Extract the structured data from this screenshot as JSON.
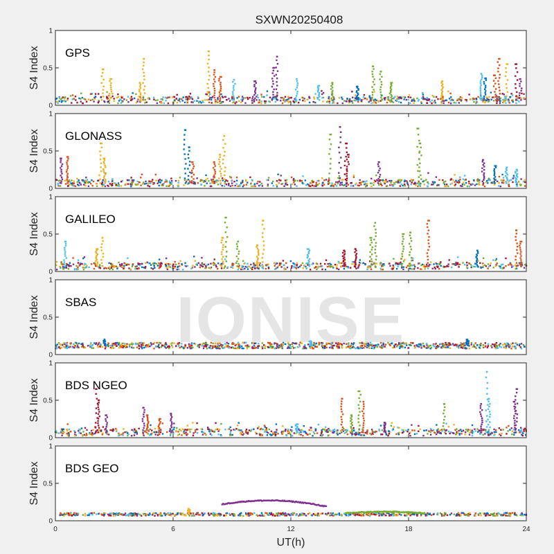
{
  "chart_data": {
    "type": "scatter",
    "title": "SXWN20250408",
    "xlabel": "UT(h)",
    "ylabel": "S4 Index",
    "xlim": [
      0,
      24
    ],
    "xticks": [
      0,
      6,
      12,
      18,
      24
    ],
    "ylim": [
      0,
      1
    ],
    "yticks": [
      0,
      0.5,
      1
    ],
    "ytick_labels": [
      "0",
      "0.5",
      "1"
    ],
    "grid": false,
    "watermark": "IONISE",
    "series_colors": [
      "#0072BD",
      "#D95319",
      "#EDB120",
      "#7E2F8E",
      "#77AC30",
      "#4DBEEE",
      "#A2142F"
    ],
    "panels": [
      {
        "label": "GPS",
        "spikes": [
          {
            "x": 2.4,
            "y": 0.48,
            "c": 2
          },
          {
            "x": 2.8,
            "y": 0.35,
            "c": 2
          },
          {
            "x": 4.5,
            "y": 0.62,
            "c": 2
          },
          {
            "x": 4.3,
            "y": 0.3,
            "c": 2
          },
          {
            "x": 7.8,
            "y": 0.72,
            "c": 2
          },
          {
            "x": 8.1,
            "y": 0.47,
            "c": 1
          },
          {
            "x": 8.4,
            "y": 0.38,
            "c": 1
          },
          {
            "x": 9.1,
            "y": 0.34,
            "c": 5
          },
          {
            "x": 10.2,
            "y": 0.32,
            "c": 3
          },
          {
            "x": 11.3,
            "y": 0.65,
            "c": 3
          },
          {
            "x": 11.1,
            "y": 0.5,
            "c": 3
          },
          {
            "x": 12.3,
            "y": 0.35,
            "c": 5
          },
          {
            "x": 13.4,
            "y": 0.26,
            "c": 5
          },
          {
            "x": 14.1,
            "y": 0.3,
            "c": 4
          },
          {
            "x": 15.4,
            "y": 0.25,
            "c": 0
          },
          {
            "x": 16.2,
            "y": 0.52,
            "c": 4
          },
          {
            "x": 16.6,
            "y": 0.45,
            "c": 4
          },
          {
            "x": 17.1,
            "y": 0.3,
            "c": 4
          },
          {
            "x": 19.7,
            "y": 0.32,
            "c": 2
          },
          {
            "x": 21.7,
            "y": 0.42,
            "c": 5
          },
          {
            "x": 21.9,
            "y": 0.36,
            "c": 0
          },
          {
            "x": 22.6,
            "y": 0.62,
            "c": 1
          },
          {
            "x": 22.4,
            "y": 0.4,
            "c": 1
          },
          {
            "x": 23.0,
            "y": 0.55,
            "c": 2
          },
          {
            "x": 23.5,
            "y": 0.55,
            "c": 6
          },
          {
            "x": 23.7,
            "y": 0.35,
            "c": 3
          }
        ]
      },
      {
        "label": "GLONASS",
        "spikes": [
          {
            "x": 0.3,
            "y": 0.4,
            "c": 3
          },
          {
            "x": 0.6,
            "y": 0.42,
            "c": 1
          },
          {
            "x": 2.3,
            "y": 0.6,
            "c": 2
          },
          {
            "x": 2.5,
            "y": 0.4,
            "c": 2
          },
          {
            "x": 6.6,
            "y": 0.78,
            "c": 0
          },
          {
            "x": 6.8,
            "y": 0.55,
            "c": 0
          },
          {
            "x": 7.0,
            "y": 0.35,
            "c": 1
          },
          {
            "x": 8.6,
            "y": 0.7,
            "c": 2
          },
          {
            "x": 8.4,
            "y": 0.45,
            "c": 2
          },
          {
            "x": 8.1,
            "y": 0.35,
            "c": 1
          },
          {
            "x": 14.0,
            "y": 0.72,
            "c": 4
          },
          {
            "x": 14.5,
            "y": 0.82,
            "c": 3
          },
          {
            "x": 14.8,
            "y": 0.6,
            "c": 6
          },
          {
            "x": 14.9,
            "y": 0.45,
            "c": 6
          },
          {
            "x": 16.5,
            "y": 0.35,
            "c": 3
          },
          {
            "x": 18.5,
            "y": 0.8,
            "c": 4
          },
          {
            "x": 18.6,
            "y": 0.6,
            "c": 4
          },
          {
            "x": 21.8,
            "y": 0.38,
            "c": 3
          },
          {
            "x": 22.4,
            "y": 0.3,
            "c": 0
          },
          {
            "x": 23.0,
            "y": 0.28,
            "c": 5
          },
          {
            "x": 23.5,
            "y": 0.25,
            "c": 5
          }
        ]
      },
      {
        "label": "GALILEO",
        "spikes": [
          {
            "x": 0.5,
            "y": 0.4,
            "c": 5
          },
          {
            "x": 2.4,
            "y": 0.45,
            "c": 2
          },
          {
            "x": 2.1,
            "y": 0.3,
            "c": 2
          },
          {
            "x": 8.7,
            "y": 0.72,
            "c": 4
          },
          {
            "x": 8.5,
            "y": 0.45,
            "c": 2
          },
          {
            "x": 9.3,
            "y": 0.4,
            "c": 4
          },
          {
            "x": 10.6,
            "y": 0.68,
            "c": 2
          },
          {
            "x": 10.3,
            "y": 0.35,
            "c": 2
          },
          {
            "x": 12.9,
            "y": 0.3,
            "c": 5
          },
          {
            "x": 14.7,
            "y": 0.28,
            "c": 6
          },
          {
            "x": 15.3,
            "y": 0.3,
            "c": 6
          },
          {
            "x": 16.3,
            "y": 0.65,
            "c": 4
          },
          {
            "x": 16.1,
            "y": 0.45,
            "c": 4
          },
          {
            "x": 17.7,
            "y": 0.5,
            "c": 4
          },
          {
            "x": 18.1,
            "y": 0.52,
            "c": 4
          },
          {
            "x": 19.0,
            "y": 0.68,
            "c": 1
          },
          {
            "x": 21.5,
            "y": 0.28,
            "c": 0
          },
          {
            "x": 23.5,
            "y": 0.55,
            "c": 1
          },
          {
            "x": 23.7,
            "y": 0.4,
            "c": 1
          }
        ]
      },
      {
        "label": "SBAS",
        "spikes": [
          {
            "x": 2.5,
            "y": 0.2,
            "c": 0
          },
          {
            "x": 13.0,
            "y": 0.18,
            "c": 5
          },
          {
            "x": 21.0,
            "y": 0.2,
            "c": 0
          }
        ]
      },
      {
        "label": "BDS NGEO",
        "spikes": [
          {
            "x": 2.1,
            "y": 0.65,
            "c": 6
          },
          {
            "x": 2.2,
            "y": 0.5,
            "c": 6
          },
          {
            "x": 2.6,
            "y": 0.3,
            "c": 3
          },
          {
            "x": 4.5,
            "y": 0.4,
            "c": 3
          },
          {
            "x": 4.7,
            "y": 0.3,
            "c": 1
          },
          {
            "x": 5.3,
            "y": 0.25,
            "c": 1
          },
          {
            "x": 5.9,
            "y": 0.32,
            "c": 3
          },
          {
            "x": 12.3,
            "y": 0.18,
            "c": 5
          },
          {
            "x": 14.6,
            "y": 0.52,
            "c": 1
          },
          {
            "x": 15.1,
            "y": 0.3,
            "c": 4
          },
          {
            "x": 15.5,
            "y": 0.62,
            "c": 4
          },
          {
            "x": 15.7,
            "y": 0.48,
            "c": 1
          },
          {
            "x": 16.8,
            "y": 0.2,
            "c": 3
          },
          {
            "x": 19.8,
            "y": 0.45,
            "c": 4
          },
          {
            "x": 21.7,
            "y": 0.45,
            "c": 3
          },
          {
            "x": 22.0,
            "y": 0.88,
            "c": 5
          },
          {
            "x": 22.1,
            "y": 0.52,
            "c": 5
          },
          {
            "x": 23.5,
            "y": 0.65,
            "c": 3
          },
          {
            "x": 23.4,
            "y": 0.48,
            "c": 3
          }
        ]
      },
      {
        "label": "BDS GEO",
        "spikes": [
          {
            "x": 6.8,
            "y": 0.16,
            "c": 2
          }
        ],
        "arcs": [
          {
            "from": 8.5,
            "to": 13.8,
            "y_start": 0.22,
            "y_peak": 0.27,
            "y_end": 0.19,
            "c": 3
          },
          {
            "from": 14.8,
            "to": 18.8,
            "y_start": 0.1,
            "y_peak": 0.12,
            "y_end": 0.1,
            "c": 4
          }
        ]
      }
    ]
  }
}
